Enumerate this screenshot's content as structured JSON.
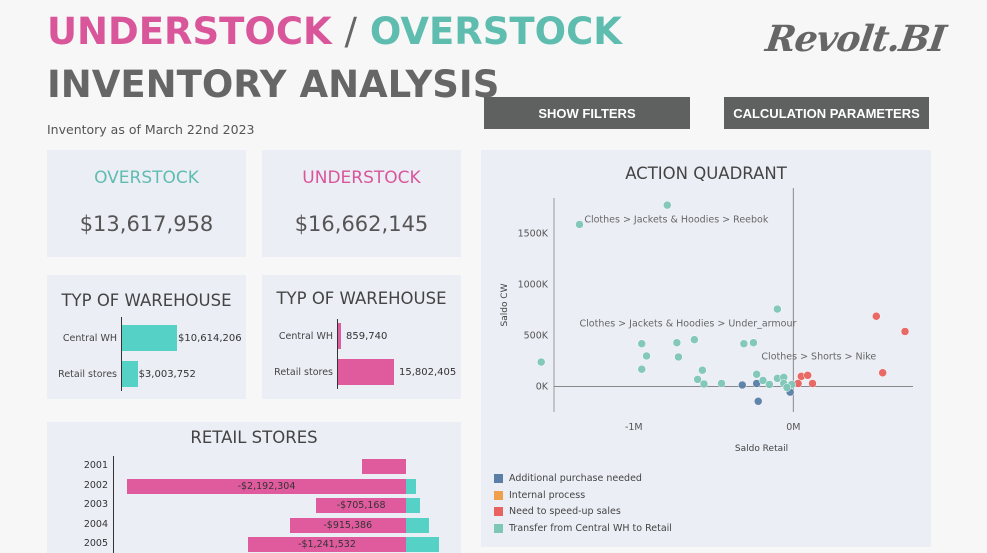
{
  "header": {
    "title_under": "UNDERSTOCK",
    "title_slash": "/",
    "title_over": "OVERSTOCK",
    "subtitle": "INVENTORY ANALYSIS",
    "as_of": "Inventory as of March 22nd 2023",
    "logo": "Revolt.BI"
  },
  "buttons": {
    "filters": "SHOW FILTERS",
    "params": "CALCULATION PARAMETERS"
  },
  "kpis": {
    "overstock_label": "OVERSTOCK",
    "overstock_value": "$13,617,958",
    "understock_label": "UNDERSTOCK",
    "understock_value": "$16,662,145"
  },
  "colors": {
    "pink": "#e05b9e",
    "teal": "#55d1c6",
    "blue": "#5a7fa7",
    "orange": "#f0a04b",
    "red": "#e8625f",
    "green": "#7ec7b7"
  },
  "warehouse_over": {
    "title": "TYP OF WAREHOUSE",
    "rows": [
      {
        "label": "Central WH",
        "value": 10614206,
        "text": "$10,614,206"
      },
      {
        "label": "Retail stores",
        "value": 3003752,
        "text": "$3,003,752"
      }
    ]
  },
  "warehouse_under": {
    "title": "TYP OF WAREHOUSE",
    "rows": [
      {
        "label": "Central WH",
        "value": 859740,
        "text": "859,740"
      },
      {
        "label": "Retail stores",
        "value": 15802405,
        "text": "15,802,405"
      }
    ]
  },
  "retail_stores": {
    "title": "RETAIL STORES",
    "rows": [
      {
        "year": "2001",
        "neg": -345000,
        "pos": 0,
        "text": ""
      },
      {
        "year": "2002",
        "neg": -2192304,
        "pos": 80000,
        "text": "-$2,192,304"
      },
      {
        "year": "2003",
        "neg": -705168,
        "pos": 110000,
        "text": "-$705,168"
      },
      {
        "year": "2004",
        "neg": -915386,
        "pos": 180000,
        "text": "-$915,386"
      },
      {
        "year": "2005",
        "neg": -1241532,
        "pos": 260000,
        "text": "-$1,241,532"
      }
    ]
  },
  "chart_data": {
    "type": "scatter",
    "title": "ACTION QUADRANT",
    "xlabel": "Saldo Retail",
    "ylabel": "Saldo CW",
    "xlim": [
      -1500000,
      750000
    ],
    "ylim": [
      -250000,
      1850000
    ],
    "xticks": [
      {
        "v": -1000000,
        "label": "-1M"
      },
      {
        "v": 0,
        "label": "0M"
      }
    ],
    "yticks": [
      {
        "v": 0,
        "label": "0K"
      },
      {
        "v": 500000,
        "label": "500K"
      },
      {
        "v": 1000000,
        "label": "1000K"
      },
      {
        "v": 1500000,
        "label": "1500K"
      }
    ],
    "series": [
      {
        "name": "Additional purchase needed",
        "color": "#5a7fa7",
        "points": [
          [
            -320000,
            15000
          ],
          [
            -220000,
            -145000
          ],
          [
            -20000,
            -55000
          ],
          [
            -230000,
            30000
          ]
        ]
      },
      {
        "name": "Internal process",
        "color": "#f0a04b",
        "points": []
      },
      {
        "name": "Need to speed-up sales",
        "color": "#e8625f",
        "points": [
          [
            30000,
            30000
          ],
          [
            50000,
            100000
          ],
          [
            90000,
            110000
          ],
          [
            120000,
            30000
          ],
          [
            520000,
            690000
          ],
          [
            700000,
            540000
          ],
          [
            560000,
            135000
          ]
        ]
      },
      {
        "name": "Transfer from Central WH to Retail",
        "color": "#7ec7b7",
        "points": [
          [
            -1340000,
            1590000
          ],
          [
            -790000,
            1780000
          ],
          [
            -1580000,
            240000
          ],
          [
            -950000,
            420000
          ],
          [
            -920000,
            300000
          ],
          [
            -950000,
            170000
          ],
          [
            -730000,
            430000
          ],
          [
            -620000,
            460000
          ],
          [
            -720000,
            290000
          ],
          [
            -570000,
            160000
          ],
          [
            -600000,
            70000
          ],
          [
            -560000,
            25000
          ],
          [
            -450000,
            30000
          ],
          [
            -310000,
            420000
          ],
          [
            -250000,
            430000
          ],
          [
            -100000,
            760000
          ],
          [
            -230000,
            120000
          ],
          [
            -190000,
            60000
          ],
          [
            -150000,
            20000
          ],
          [
            -100000,
            80000
          ],
          [
            -60000,
            90000
          ],
          [
            -10000,
            20000
          ],
          [
            -60000,
            30000
          ],
          [
            -40000,
            -10000
          ]
        ]
      }
    ],
    "annotations": [
      {
        "text": "Clothes > Jackets & Hoodies > Reebok",
        "x": -1310000,
        "y": 1610000
      },
      {
        "text": "Clothes > Jackets & Hoodies > Under_armour",
        "x": -1340000,
        "y": 590000
      },
      {
        "text": "Clothes > Shorts > Nike",
        "x": -200000,
        "y": 265000
      }
    ]
  }
}
